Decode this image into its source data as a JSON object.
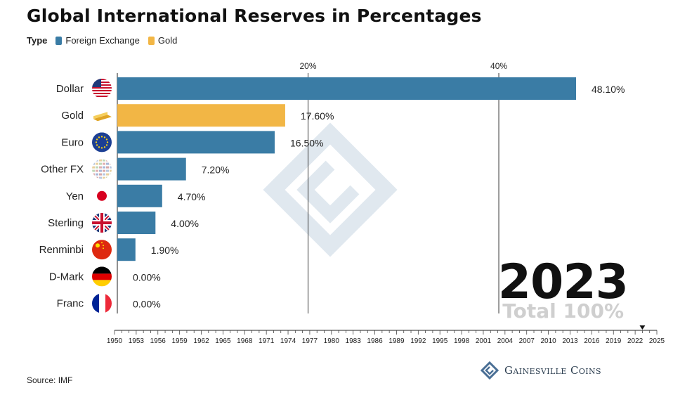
{
  "title": "Global International Reserves in Percentages",
  "legend": {
    "type_label": "Type",
    "items": [
      {
        "label": "Foreign Exchange",
        "color": "#3a7ca5"
      },
      {
        "label": "Gold",
        "color": "#f2b645"
      }
    ]
  },
  "chart_data": {
    "type": "bar",
    "orientation": "horizontal",
    "categories": [
      "Dollar",
      "Gold",
      "Euro",
      "Other FX",
      "Yen",
      "Sterling",
      "Renminbi",
      "D-Mark",
      "Franc"
    ],
    "values": [
      48.1,
      17.6,
      16.5,
      7.2,
      4.7,
      4.0,
      1.9,
      0.0,
      0.0
    ],
    "value_labels": [
      "48.10%",
      "17.60%",
      "16.50%",
      "7.20%",
      "4.70%",
      "4.00%",
      "1.90%",
      "0.00%",
      "0.00%"
    ],
    "types": [
      "Foreign Exchange",
      "Gold",
      "Foreign Exchange",
      "Foreign Exchange",
      "Foreign Exchange",
      "Foreign Exchange",
      "Foreign Exchange",
      "Foreign Exchange",
      "Foreign Exchange"
    ],
    "flags": [
      "us-flag-icon",
      "gold-bar-icon",
      "eu-flag-icon",
      "mixed-flags-icon",
      "japan-flag-icon",
      "uk-flag-icon",
      "china-flag-icon",
      "germany-flag-icon",
      "france-flag-icon"
    ],
    "x_ticks": [
      20,
      40
    ],
    "x_tick_labels": [
      "20%",
      "40%"
    ],
    "xlim": [
      0,
      48.1
    ],
    "timeline": {
      "years": [
        1950,
        1953,
        1956,
        1959,
        1962,
        1965,
        1968,
        1971,
        1974,
        1977,
        1980,
        1983,
        1986,
        1989,
        1992,
        1995,
        1998,
        2001,
        2004,
        2007,
        2010,
        2013,
        2016,
        2019,
        2022,
        2025
      ],
      "range": [
        1950,
        2025
      ],
      "current": 2023
    }
  },
  "year_display": "2023",
  "total_display": "Total 100%",
  "source": "Source: IMF",
  "brand": "Gainesville Coins"
}
